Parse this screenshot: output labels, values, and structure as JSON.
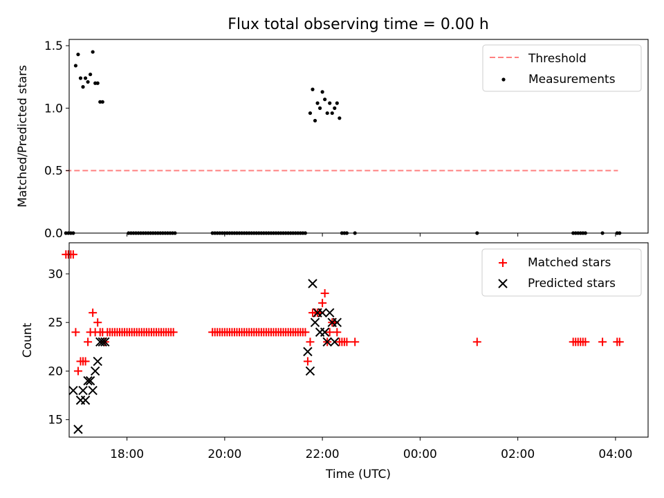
{
  "title": "Flux total observing time = 0.00 h",
  "chart_data": [
    {
      "type": "scatter",
      "panel": "top",
      "title": "Flux total observing time = 0.00 h",
      "xlabel": "",
      "ylabel": "Matched/Predicted stars",
      "xlim": [
        "16:49",
        "04:40"
      ],
      "ylim": [
        0,
        1.55
      ],
      "yticks": [
        0.0,
        0.5,
        1.0,
        1.5
      ],
      "ytick_labels": [
        "0.0",
        "0.5",
        "1.0",
        "1.5"
      ],
      "legend_position": "top-right",
      "grid": false,
      "colors": {
        "threshold": "#ff8080",
        "measurements": "#000000"
      },
      "series": [
        {
          "name": "Threshold",
          "kind": "line",
          "style": "dashed",
          "x": [
            "16:45",
            "04:03"
          ],
          "y": [
            0.5,
            0.5
          ]
        },
        {
          "name": "Measurements",
          "kind": "scatter",
          "points": [
            [
              "16:45",
              0
            ],
            [
              "16:48",
              0
            ],
            [
              "16:51",
              0
            ],
            [
              "16:54",
              0
            ],
            [
              "16:57",
              1.34
            ],
            [
              "17:00",
              1.43
            ],
            [
              "17:03",
              1.24
            ],
            [
              "17:06",
              1.17
            ],
            [
              "17:09",
              1.24
            ],
            [
              "17:12",
              1.21
            ],
            [
              "17:15",
              1.27
            ],
            [
              "17:18",
              1.45
            ],
            [
              "17:21",
              1.2
            ],
            [
              "17:24",
              1.2
            ],
            [
              "17:27",
              1.05
            ],
            [
              "17:30",
              1.05
            ],
            [
              "18:02",
              0
            ],
            [
              "18:05",
              0
            ],
            [
              "18:08",
              0
            ],
            [
              "18:11",
              0
            ],
            [
              "18:14",
              0
            ],
            [
              "18:17",
              0
            ],
            [
              "18:20",
              0
            ],
            [
              "18:23",
              0
            ],
            [
              "18:26",
              0
            ],
            [
              "18:29",
              0
            ],
            [
              "18:32",
              0
            ],
            [
              "18:35",
              0
            ],
            [
              "18:38",
              0
            ],
            [
              "18:41",
              0
            ],
            [
              "18:44",
              0
            ],
            [
              "18:47",
              0
            ],
            [
              "18:50",
              0
            ],
            [
              "18:53",
              0
            ],
            [
              "18:56",
              0
            ],
            [
              "18:59",
              0
            ],
            [
              "19:45",
              0
            ],
            [
              "19:48",
              0
            ],
            [
              "19:51",
              0
            ],
            [
              "19:54",
              0
            ],
            [
              "19:57",
              0
            ],
            [
              "20:00",
              0
            ],
            [
              "20:03",
              0
            ],
            [
              "20:06",
              0
            ],
            [
              "20:09",
              0
            ],
            [
              "20:12",
              0
            ],
            [
              "20:15",
              0
            ],
            [
              "20:18",
              0
            ],
            [
              "20:21",
              0
            ],
            [
              "20:24",
              0
            ],
            [
              "20:27",
              0
            ],
            [
              "20:30",
              0
            ],
            [
              "20:33",
              0
            ],
            [
              "20:36",
              0
            ],
            [
              "20:39",
              0
            ],
            [
              "20:42",
              0
            ],
            [
              "20:45",
              0
            ],
            [
              "20:48",
              0
            ],
            [
              "20:51",
              0
            ],
            [
              "20:54",
              0
            ],
            [
              "20:57",
              0
            ],
            [
              "21:00",
              0
            ],
            [
              "21:03",
              0
            ],
            [
              "21:06",
              0
            ],
            [
              "21:09",
              0
            ],
            [
              "21:12",
              0
            ],
            [
              "21:15",
              0
            ],
            [
              "21:18",
              0
            ],
            [
              "21:21",
              0
            ],
            [
              "21:24",
              0
            ],
            [
              "21:27",
              0
            ],
            [
              "21:30",
              0
            ],
            [
              "21:33",
              0
            ],
            [
              "21:36",
              0
            ],
            [
              "21:39",
              0
            ],
            [
              "21:45",
              0.96
            ],
            [
              "21:48",
              1.15
            ],
            [
              "21:51",
              0.9
            ],
            [
              "21:54",
              1.04
            ],
            [
              "21:57",
              1.0
            ],
            [
              "22:00",
              1.13
            ],
            [
              "22:03",
              1.07
            ],
            [
              "22:06",
              0.96
            ],
            [
              "22:09",
              1.04
            ],
            [
              "22:12",
              0.96
            ],
            [
              "22:15",
              1.0
            ],
            [
              "22:18",
              1.04
            ],
            [
              "22:21",
              0.92
            ],
            [
              "22:24",
              0
            ],
            [
              "22:27",
              0
            ],
            [
              "22:30",
              0
            ],
            [
              "22:40",
              0
            ],
            [
              "01:10",
              0
            ],
            [
              "03:08",
              0
            ],
            [
              "03:11",
              0
            ],
            [
              "03:14",
              0
            ],
            [
              "03:17",
              0
            ],
            [
              "03:20",
              0
            ],
            [
              "03:23",
              0
            ],
            [
              "03:44",
              0
            ],
            [
              "04:02",
              0
            ],
            [
              "04:05",
              0
            ]
          ]
        }
      ]
    },
    {
      "type": "scatter",
      "panel": "bottom",
      "xlabel": "Time (UTC)",
      "ylabel": "Count",
      "xlim": [
        "16:49",
        "04:40"
      ],
      "ylim": [
        13.2,
        33.2
      ],
      "yticks": [
        15,
        20,
        25,
        30
      ],
      "ytick_labels": [
        "15",
        "20",
        "25",
        "30"
      ],
      "xticks": [
        "18:00",
        "20:00",
        "22:00",
        "00:00",
        "02:00",
        "04:00"
      ],
      "legend_position": "top-right",
      "grid": false,
      "colors": {
        "matched": "#ff0000",
        "predicted": "#000000"
      },
      "series": [
        {
          "name": "Matched stars",
          "marker": "+",
          "points": [
            [
              "16:45",
              32
            ],
            [
              "16:48",
              32
            ],
            [
              "16:51",
              32
            ],
            [
              "16:54",
              32
            ],
            [
              "16:57",
              24
            ],
            [
              "17:00",
              20
            ],
            [
              "17:03",
              21
            ],
            [
              "17:06",
              21
            ],
            [
              "17:09",
              21
            ],
            [
              "17:12",
              23
            ],
            [
              "17:15",
              24
            ],
            [
              "17:18",
              26
            ],
            [
              "17:21",
              24
            ],
            [
              "17:24",
              25
            ],
            [
              "17:27",
              24
            ],
            [
              "17:30",
              24
            ],
            [
              "17:33",
              23
            ],
            [
              "17:36",
              24
            ],
            [
              "17:39",
              24
            ],
            [
              "17:42",
              24
            ],
            [
              "17:45",
              24
            ],
            [
              "17:48",
              24
            ],
            [
              "17:51",
              24
            ],
            [
              "17:54",
              24
            ],
            [
              "17:57",
              24
            ],
            [
              "18:00",
              24
            ],
            [
              "18:03",
              24
            ],
            [
              "18:06",
              24
            ],
            [
              "18:09",
              24
            ],
            [
              "18:12",
              24
            ],
            [
              "18:15",
              24
            ],
            [
              "18:18",
              24
            ],
            [
              "18:21",
              24
            ],
            [
              "18:24",
              24
            ],
            [
              "18:27",
              24
            ],
            [
              "18:30",
              24
            ],
            [
              "18:33",
              24
            ],
            [
              "18:36",
              24
            ],
            [
              "18:39",
              24
            ],
            [
              "18:42",
              24
            ],
            [
              "18:45",
              24
            ],
            [
              "18:48",
              24
            ],
            [
              "18:51",
              24
            ],
            [
              "18:54",
              24
            ],
            [
              "18:57",
              24
            ],
            [
              "19:45",
              24
            ],
            [
              "19:48",
              24
            ],
            [
              "19:51",
              24
            ],
            [
              "19:54",
              24
            ],
            [
              "19:57",
              24
            ],
            [
              "20:00",
              24
            ],
            [
              "20:03",
              24
            ],
            [
              "20:06",
              24
            ],
            [
              "20:09",
              24
            ],
            [
              "20:12",
              24
            ],
            [
              "20:15",
              24
            ],
            [
              "20:18",
              24
            ],
            [
              "20:21",
              24
            ],
            [
              "20:24",
              24
            ],
            [
              "20:27",
              24
            ],
            [
              "20:30",
              24
            ],
            [
              "20:33",
              24
            ],
            [
              "20:36",
              24
            ],
            [
              "20:39",
              24
            ],
            [
              "20:42",
              24
            ],
            [
              "20:45",
              24
            ],
            [
              "20:48",
              24
            ],
            [
              "20:51",
              24
            ],
            [
              "20:54",
              24
            ],
            [
              "20:57",
              24
            ],
            [
              "21:00",
              24
            ],
            [
              "21:03",
              24
            ],
            [
              "21:06",
              24
            ],
            [
              "21:09",
              24
            ],
            [
              "21:12",
              24
            ],
            [
              "21:15",
              24
            ],
            [
              "21:18",
              24
            ],
            [
              "21:21",
              24
            ],
            [
              "21:24",
              24
            ],
            [
              "21:27",
              24
            ],
            [
              "21:30",
              24
            ],
            [
              "21:33",
              24
            ],
            [
              "21:36",
              24
            ],
            [
              "21:39",
              24
            ],
            [
              "21:42",
              21
            ],
            [
              "21:45",
              23
            ],
            [
              "21:48",
              26
            ],
            [
              "21:51",
              26
            ],
            [
              "21:54",
              26
            ],
            [
              "21:57",
              26
            ],
            [
              "22:00",
              27
            ],
            [
              "22:03",
              28
            ],
            [
              "22:06",
              23
            ],
            [
              "22:09",
              24
            ],
            [
              "22:12",
              25
            ],
            [
              "22:15",
              25
            ],
            [
              "22:18",
              24
            ],
            [
              "22:21",
              23
            ],
            [
              "22:24",
              23
            ],
            [
              "22:27",
              23
            ],
            [
              "22:30",
              23
            ],
            [
              "22:40",
              23
            ],
            [
              "01:10",
              23
            ],
            [
              "03:08",
              23
            ],
            [
              "03:11",
              23
            ],
            [
              "03:14",
              23
            ],
            [
              "03:17",
              23
            ],
            [
              "03:20",
              23
            ],
            [
              "03:23",
              23
            ],
            [
              "03:44",
              23
            ],
            [
              "04:02",
              23
            ],
            [
              "04:05",
              23
            ]
          ]
        },
        {
          "name": "Predicted stars",
          "marker": "x",
          "points": [
            [
              "16:54",
              18
            ],
            [
              "17:00",
              14
            ],
            [
              "17:03",
              17
            ],
            [
              "17:06",
              18
            ],
            [
              "17:09",
              17
            ],
            [
              "17:12",
              19
            ],
            [
              "17:15",
              19
            ],
            [
              "17:18",
              18
            ],
            [
              "17:21",
              20
            ],
            [
              "17:24",
              21
            ],
            [
              "17:27",
              23
            ],
            [
              "17:30",
              23
            ],
            [
              "17:33",
              23
            ],
            [
              "21:42",
              22
            ],
            [
              "21:45",
              20
            ],
            [
              "21:48",
              29
            ],
            [
              "21:51",
              25
            ],
            [
              "21:54",
              26
            ],
            [
              "21:57",
              24
            ],
            [
              "22:00",
              26
            ],
            [
              "22:03",
              24
            ],
            [
              "22:06",
              23
            ],
            [
              "22:09",
              26
            ],
            [
              "22:12",
              25
            ],
            [
              "22:15",
              23
            ],
            [
              "22:18",
              25
            ]
          ]
        }
      ]
    }
  ]
}
